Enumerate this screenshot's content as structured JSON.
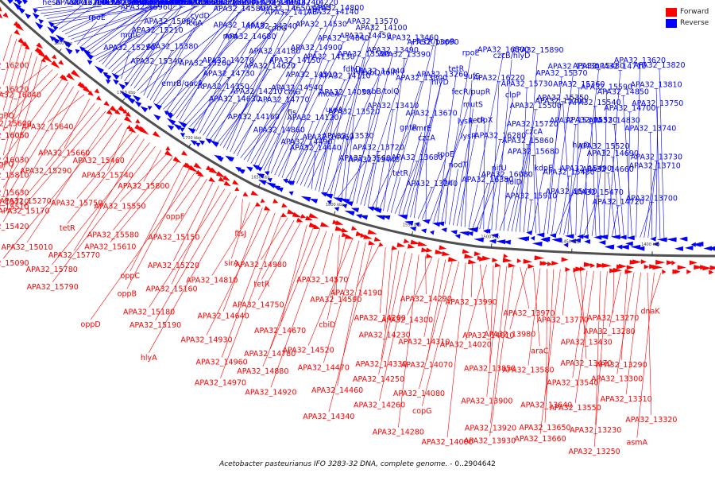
{
  "caption": {
    "organism": "Acetobacter pasteurianus IFO 3283-32 DNA, complete genome.",
    "range": " - 0..2904642"
  },
  "legend": {
    "forward_label": "Forward",
    "forward_color": "#ff0000",
    "reverse_label": "Reverse",
    "reverse_color": "#0000ff"
  },
  "ticks": [
    "1800 kbp",
    "1750 kbp",
    "1700 kbp",
    "1650 kbp",
    "1600 kbp",
    "1550 kbp",
    "1500 kbp",
    "1450 kbp",
    "1400 kbp"
  ],
  "reverse_labels": [
    "hesB",
    "lon",
    "hu",
    "APA32_16740",
    "baf",
    "iclR",
    "APA32_16210",
    "APA32_16190",
    "APA32_16170",
    "APA32_15850",
    "APA32_15830",
    "APA32_15900",
    "APA32_15840",
    "czcC",
    "rpoE",
    "APA32_15690",
    "APA32_15620",
    "fecR/pupR",
    "APA32_15670",
    "APA32_15820",
    "APA32_15650",
    "mgtC",
    "APA32_15960",
    "lysR",
    "APA32_15320",
    "APA32_15310",
    "APA32_15560",
    "APA32_15390",
    "APA32_15250",
    "APA32_15210",
    "APA32_15080",
    "nol1/nop2",
    "APA32_15060",
    "APA32_15040",
    "APA32_15020",
    "APA32_15340",
    "APA32_15380",
    "fcuA",
    "cydD",
    "padR",
    "cydC",
    "APA32_15240",
    "emrB/qacA",
    "APA32_15200",
    "npd",
    "APA32_14610",
    "APA32_14580",
    "APA32_14360",
    "APA32_14740",
    "APA32_14350",
    "APA32_14730",
    "APA32_14270",
    "APA32_14680",
    "APA32_14240",
    "APA32_14650",
    "APA32_14220",
    "APA32_14630",
    "APA32_14210",
    "APA32_14620",
    "APA32_14180",
    "cobG",
    "APA32_14170",
    "cobH",
    "APA32_14160",
    "APA32_14770",
    "APA32_14540",
    "APA32_14150",
    "APA32_14900",
    "APA32_14530",
    "APA32_14140",
    "APA32_14860",
    "fis",
    "cbiG",
    "APA32_14510",
    "APA32_14130",
    "APA32_14840",
    "APA32_14800",
    "APA32_14490",
    "APA32_14120",
    "moeA",
    "APA32_14110",
    "fdhD",
    "APA32_14450",
    "APA32_14100",
    "APA32_14440",
    "APA32_14060",
    "uvrA",
    "APA32_14050",
    "APA32_14040",
    "APA32_13590",
    "APA32_13570",
    "APA32_13560",
    "APA32_13530",
    "APA32_13520",
    "exbB/tolQ",
    "exbD/tolR",
    "APA32_13490",
    "APA32_13460",
    "APA32_13440",
    "APA32_13720",
    "gntR",
    "APA32_13410",
    "APA32_13800",
    "APA32_13390",
    "APA32_13690",
    "tetR",
    "APA32_13680",
    "emrE",
    "APA32_13670",
    "hlyD",
    "APA32_13260",
    "fecR/pupR",
    "APA32_13240",
    "rpoE",
    "czcA",
    "lysR",
    "fecR/pupR",
    "tetR",
    "rpoE",
    "fur",
    "nodT",
    "lysR",
    "tetR",
    "mutS",
    "sufS",
    "APA32_16500",
    "APA32_16380",
    "nifU",
    "APA32_16280",
    "clpX",
    "clpP",
    "APA32_16220",
    "czcB/hlyD",
    "lolD",
    "APA32_16080",
    "APA32_15860",
    "APA32_15720",
    "APA32_15500",
    "APA32_15730",
    "APA32_15890",
    "APA32_15910",
    "kdpE",
    "APA32_15680",
    "czcA",
    "APA32_15700",
    "APA32_15370",
    "APA32_15430",
    "APA32_15440",
    "APA32_15450",
    "hlyD",
    "APA32_15300",
    "APA32_15350",
    "APA32_15360",
    "APA32_15480",
    "APA32_15470",
    "APA32_15490",
    "APA32_15520",
    "APA32_15530",
    "APA32_15540",
    "APA32_15590",
    "APA32_14710",
    "APA32_14720",
    "APA32_14660",
    "APA32_14690",
    "APA32_14830",
    "APA32_14700",
    "APA32_14850",
    "APA32_13620",
    "APA32_13700",
    "APA32_13710",
    "APA32_13730",
    "APA32_13740",
    "APA32_13750",
    "APA32_13810",
    "APA32_13820"
  ],
  "forward_labels": [
    "APA32_16200",
    "APA32_16120",
    "vjgPQ",
    "APA32_16060",
    "APA32_16030",
    "APA32_15810",
    "APA32_15710",
    "APA32_16040",
    "APA32_15600",
    "APA32_16050",
    "vjgPQ",
    "APA32_15630",
    "APA32_15510",
    "APA32_15420",
    "APA32_15640",
    "APA32_15660",
    "APA32_15290",
    "APA32_15270",
    "APA32_15170",
    "APA32_15010",
    "APA32_15090",
    "APA32_15460",
    "APA32_15740",
    "APA32_15750",
    "tetR",
    "APA32_15770",
    "APA32_15780",
    "APA32_15790",
    "APA32_15800",
    "APA32_15550",
    "APA32_15580",
    "APA32_15610",
    "oppC",
    "oppB",
    "oppD",
    "oppF",
    "APA32_15150",
    "APA32_15220",
    "APA32_15160",
    "APA32_15180",
    "APA32_15190",
    "hlyA",
    "ftsJ",
    "sirA",
    "APA32_14810",
    "APA32_14640",
    "APA32_14930",
    "APA32_14960",
    "APA32_14970",
    "APA32_14980",
    "tetR",
    "APA32_14750",
    "APA32_14670",
    "APA32_14780",
    "APA32_14880",
    "APA32_14920",
    "APA32_14570",
    "APA32_14590",
    "cbiD",
    "APA32_14520",
    "APA32_14470",
    "APA32_14460",
    "APA32_14340",
    "APA32_14190",
    "APA32_14200",
    "APA32_14230",
    "APA32_14330",
    "APA32_14250",
    "APA32_14260",
    "APA32_14280",
    "APA32_14290",
    "APA32_14300",
    "APA32_14310",
    "APA32_14070",
    "APA32_14080",
    "copG",
    "APA32_14000",
    "APA32_13990",
    "APA32_14010",
    "APA32_14020",
    "APA32_13850",
    "APA32_13900",
    "APA32_13920",
    "APA32_13930",
    "APA32_13970",
    "APA32_13980",
    "araC",
    "APA32_13580",
    "APA32_13640",
    "APA32_13650",
    "APA32_13660",
    "APA32_13770",
    "APA32_13430",
    "APA32_13470",
    "APA32_13540",
    "APA32_13550",
    "APA32_13230",
    "APA32_13250",
    "APA32_13270",
    "APA32_13280",
    "APA32_13290",
    "APA32_13300",
    "APA32_13310",
    "APA32_13320",
    "asmA",
    "dnaK"
  ]
}
